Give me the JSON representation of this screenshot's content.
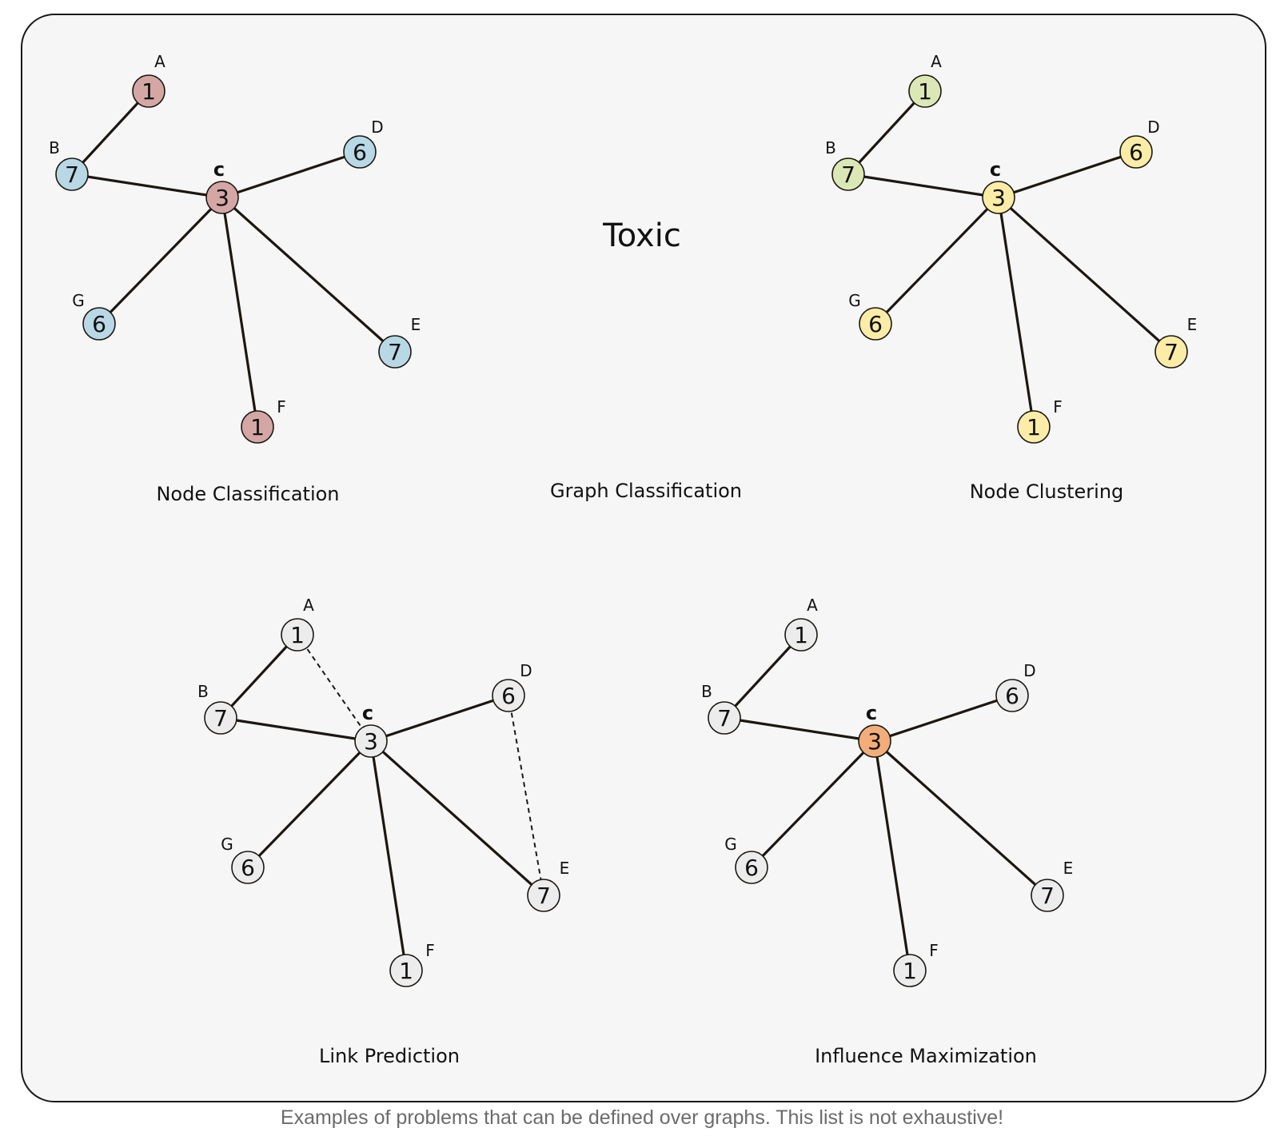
{
  "title": "Toxic",
  "caption": "Examples of problems that can be defined over graphs. This list is not exhaustive!",
  "panel_labels": {
    "node_classification": "Node Classification",
    "graph_classification": "Graph Classification",
    "node_clustering": "Node Clustering",
    "link_prediction": "Link Prediction",
    "influence_maximization": "Influence Maximization"
  },
  "graph": {
    "nodes": [
      {
        "id": "A",
        "value": "1"
      },
      {
        "id": "B",
        "value": "7"
      },
      {
        "id": "C",
        "value": "3"
      },
      {
        "id": "D",
        "value": "6"
      },
      {
        "id": "E",
        "value": "7"
      },
      {
        "id": "F",
        "value": "1"
      },
      {
        "id": "G",
        "value": "6"
      }
    ],
    "edges": [
      [
        "A",
        "B"
      ],
      [
        "B",
        "C"
      ],
      [
        "C",
        "D"
      ],
      [
        "C",
        "G"
      ],
      [
        "C",
        "F"
      ],
      [
        "C",
        "E"
      ]
    ]
  },
  "panels": [
    {
      "key": "node_classification",
      "colors": {
        "A": "#d4a7a5",
        "B": "#b8d8e6",
        "C": "#d4a7a5",
        "D": "#b8d8e6",
        "E": "#b8d8e6",
        "F": "#d4a7a5",
        "G": "#b8d8e6"
      },
      "dashed_edges": []
    },
    {
      "key": "node_clustering",
      "colors": {
        "A": "#dbe8b5",
        "B": "#dbe8b5",
        "C": "#fbeca7",
        "D": "#fbeca7",
        "E": "#fbeca7",
        "F": "#fbeca7",
        "G": "#fbeca7"
      },
      "dashed_edges": []
    },
    {
      "key": "link_prediction",
      "colors": {
        "A": "#ececec",
        "B": "#ececec",
        "C": "#ececec",
        "D": "#ececec",
        "E": "#ececec",
        "F": "#ececec",
        "G": "#ececec"
      },
      "dashed_edges": [
        [
          "A",
          "C"
        ],
        [
          "D",
          "E"
        ]
      ]
    },
    {
      "key": "influence_maximization",
      "colors": {
        "A": "#ececec",
        "B": "#ececec",
        "C": "#f2ad7a",
        "D": "#ececec",
        "E": "#ececec",
        "F": "#ececec",
        "G": "#ececec"
      },
      "dashed_edges": []
    }
  ]
}
